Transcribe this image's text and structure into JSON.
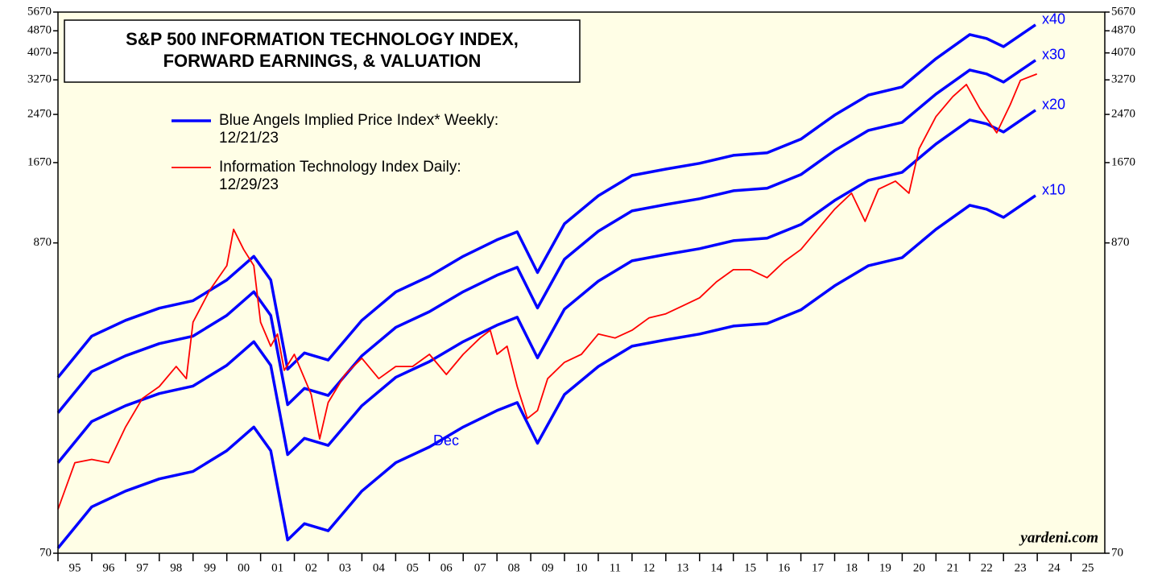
{
  "chart_data": {
    "type": "line",
    "title": [
      "S&P 500 INFORMATION TECHNOLOGY INDEX,",
      "FORWARD EARNINGS, & VALUATION"
    ],
    "log_scale": true,
    "xlim": [
      1995,
      2026
    ],
    "xticks": [
      {
        "value": 1995,
        "label": "95"
      },
      {
        "value": 1996,
        "label": "96"
      },
      {
        "value": 1997,
        "label": "97"
      },
      {
        "value": 1998,
        "label": "98"
      },
      {
        "value": 1999,
        "label": "99"
      },
      {
        "value": 2000,
        "label": "00"
      },
      {
        "value": 2001,
        "label": "01"
      },
      {
        "value": 2002,
        "label": "02"
      },
      {
        "value": 2003,
        "label": "03"
      },
      {
        "value": 2004,
        "label": "04"
      },
      {
        "value": 2005,
        "label": "05"
      },
      {
        "value": 2006,
        "label": "06"
      },
      {
        "value": 2007,
        "label": "07"
      },
      {
        "value": 2008,
        "label": "08"
      },
      {
        "value": 2009,
        "label": "09"
      },
      {
        "value": 2010,
        "label": "10"
      },
      {
        "value": 2011,
        "label": "11"
      },
      {
        "value": 2012,
        "label": "12"
      },
      {
        "value": 2013,
        "label": "13"
      },
      {
        "value": 2014,
        "label": "14"
      },
      {
        "value": 2015,
        "label": "15"
      },
      {
        "value": 2016,
        "label": "16"
      },
      {
        "value": 2017,
        "label": "17"
      },
      {
        "value": 2018,
        "label": "18"
      },
      {
        "value": 2019,
        "label": "19"
      },
      {
        "value": 2020,
        "label": "20"
      },
      {
        "value": 2021,
        "label": "21"
      },
      {
        "value": 2022,
        "label": "22"
      },
      {
        "value": 2023,
        "label": "23"
      },
      {
        "value": 2024,
        "label": "24"
      },
      {
        "value": 2025,
        "label": "25"
      }
    ],
    "ylim": [
      70,
      5670
    ],
    "yticks": [
      70,
      870,
      1670,
      2470,
      3270,
      4070,
      4870,
      5670
    ],
    "legend": [
      {
        "text": "Blue Angels Implied Price Index* Weekly:",
        "date": "12/21/23",
        "color": "#0000ff"
      },
      {
        "text": "Information Technology Index Daily:",
        "date": "12/29/23",
        "color": "#ff0000"
      }
    ],
    "annotations": [
      "Dec",
      "yardeni.com"
    ],
    "series": [
      {
        "name": "x10",
        "color": "#0000ff",
        "x": [
          1995,
          1996,
          1997,
          1998,
          1999,
          2000,
          2000.8,
          2001.3,
          2001.8,
          2002.3,
          2003,
          2004,
          2005,
          2006,
          2007,
          2008,
          2008.6,
          2009.2,
          2010,
          2011,
          2012,
          2013,
          2014,
          2015,
          2016,
          2017,
          2018,
          2019,
          2020,
          2021,
          2022,
          2022.5,
          2023,
          2023.95
        ],
        "values": [
          73,
          102,
          116,
          128,
          136,
          161,
          195,
          161,
          78,
          89,
          84,
          116,
          146,
          166,
          195,
          223,
          238,
          171,
          254,
          319,
          376,
          396,
          415,
          443,
          452,
          505,
          614,
          723,
          772,
          971,
          1181,
          1144,
          1071,
          1278
        ]
      },
      {
        "name": "x20",
        "color": "#0000ff",
        "x": [
          1995,
          1996,
          1997,
          1998,
          1999,
          2000,
          2000.8,
          2001.3,
          2001.8,
          2002.3,
          2003,
          2004,
          2005,
          2006,
          2007,
          2008,
          2008.6,
          2009.2,
          2010,
          2011,
          2012,
          2013,
          2014,
          2015,
          2016,
          2017,
          2018,
          2019,
          2020,
          2021,
          2022,
          2022.5,
          2023,
          2023.95
        ],
        "values": [
          146,
          204,
          232,
          256,
          272,
          322,
          390,
          322,
          156,
          178,
          168,
          232,
          292,
          332,
          390,
          446,
          476,
          342,
          508,
          638,
          752,
          792,
          830,
          886,
          904,
          1010,
          1228,
          1446,
          1544,
          1942,
          2362,
          2288,
          2142,
          2556
        ]
      },
      {
        "name": "x30",
        "color": "#0000ff",
        "x": [
          1995,
          1996,
          1997,
          1998,
          1999,
          2000,
          2000.8,
          2001.3,
          2001.8,
          2002.3,
          2003,
          2004,
          2005,
          2006,
          2007,
          2008,
          2008.6,
          2009.2,
          2010,
          2011,
          2012,
          2013,
          2014,
          2015,
          2016,
          2017,
          2018,
          2019,
          2020,
          2021,
          2022,
          2022.5,
          2023,
          2023.95
        ],
        "values": [
          219,
          306,
          348,
          384,
          408,
          483,
          585,
          483,
          234,
          267,
          252,
          348,
          438,
          498,
          585,
          669,
          714,
          513,
          762,
          957,
          1128,
          1188,
          1245,
          1329,
          1356,
          1515,
          1842,
          2169,
          2316,
          2913,
          3543,
          3432,
          3213,
          3834
        ]
      },
      {
        "name": "x40",
        "color": "#0000ff",
        "x": [
          1995,
          1996,
          1997,
          1998,
          1999,
          2000,
          2000.8,
          2001.3,
          2001.8,
          2002.3,
          2003,
          2004,
          2005,
          2006,
          2007,
          2008,
          2008.6,
          2009.2,
          2010,
          2011,
          2012,
          2013,
          2014,
          2015,
          2016,
          2017,
          2018,
          2019,
          2020,
          2021,
          2022,
          2022.5,
          2023,
          2023.95
        ],
        "values": [
          292,
          408,
          464,
          512,
          544,
          644,
          780,
          644,
          312,
          356,
          336,
          464,
          584,
          664,
          780,
          892,
          952,
          684,
          1016,
          1276,
          1504,
          1584,
          1660,
          1772,
          1808,
          2020,
          2456,
          2892,
          3088,
          3884,
          4724,
          4576,
          4284,
          5112
        ]
      },
      {
        "color": "#ff0000",
        "x": [
          1995,
          1995.5,
          1996,
          1996.5,
          1997,
          1997.5,
          1998,
          1998.5,
          1998.8,
          1999,
          1999.5,
          2000,
          2000.2,
          2000.5,
          2000.8,
          2001,
          2001.3,
          2001.5,
          2001.7,
          2002,
          2002.5,
          2002.75,
          2003,
          2003.5,
          2004,
          2004.5,
          2005,
          2005.5,
          2006,
          2006.5,
          2007,
          2007.5,
          2007.8,
          2008,
          2008.3,
          2008.6,
          2008.9,
          2009.2,
          2009.5,
          2010,
          2010.5,
          2011,
          2011.5,
          2012,
          2012.5,
          2013,
          2013.5,
          2014,
          2014.5,
          2015,
          2015.5,
          2016,
          2016.5,
          2017,
          2017.5,
          2018,
          2018.5,
          2018.9,
          2019.3,
          2019.8,
          2020.2,
          2020.5,
          2021,
          2021.5,
          2021.9,
          2022.3,
          2022.8,
          2023.2,
          2023.5,
          2023.99
        ],
        "values": [
          100,
          146,
          150,
          146,
          195,
          246,
          271,
          319,
          289,
          457,
          594,
          723,
          971,
          825,
          723,
          457,
          376,
          415,
          309,
          352,
          254,
          177,
          238,
          299,
          341,
          289,
          319,
          319,
          352,
          299,
          352,
          402,
          428,
          352,
          376,
          271,
          209,
          223,
          289,
          330,
          352,
          415,
          402,
          428,
          473,
          489,
          522,
          557,
          634,
          700,
          700,
          656,
          747,
          825,
          971,
          1144,
          1303,
          1036,
          1346,
          1437,
          1303,
          1869,
          2426,
          2856,
          3150,
          2590,
          2128,
          2674,
          3256,
          3430
        ]
      }
    ]
  }
}
